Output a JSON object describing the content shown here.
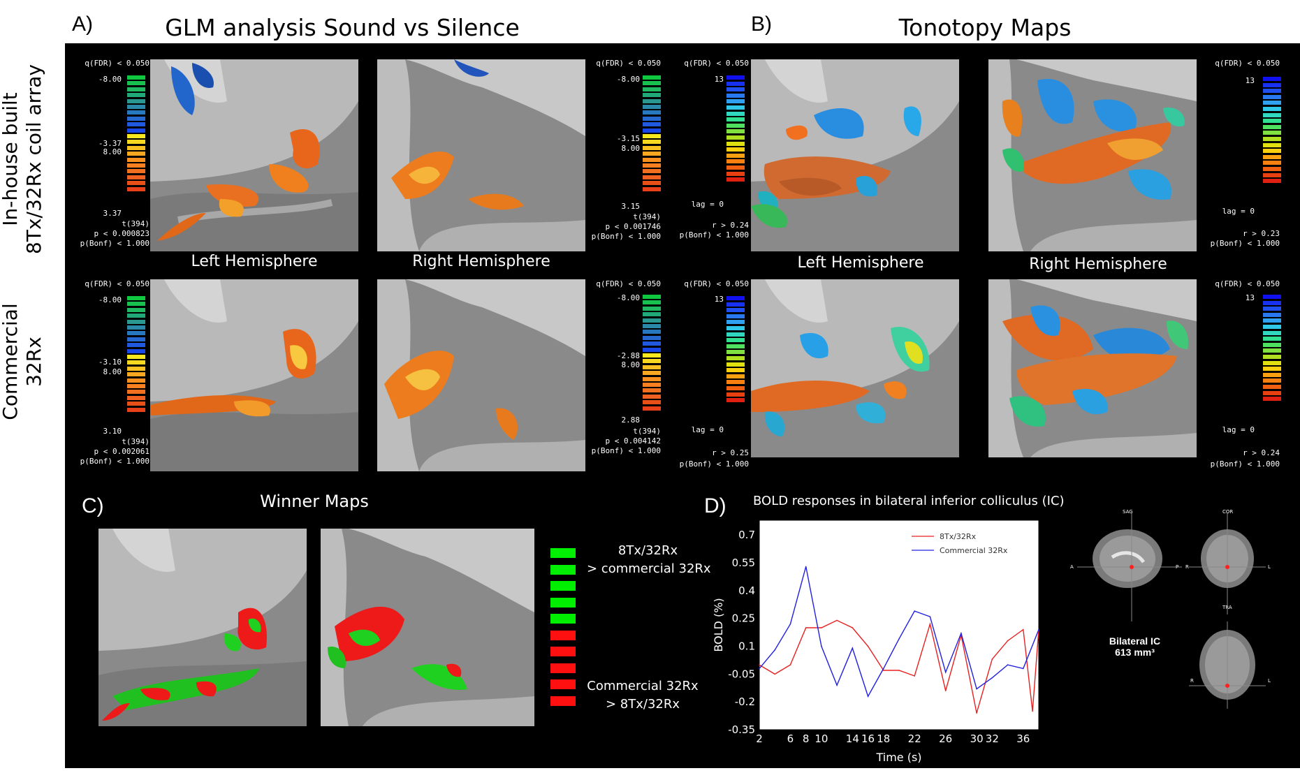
{
  "panels": {
    "a": {
      "letter": "A)",
      "title": "GLM analysis Sound vs Silence"
    },
    "b": {
      "letter": "B)",
      "title": "Tonotopy Maps"
    },
    "c": {
      "letter": "C)",
      "title": "Winner Maps"
    },
    "d": {
      "letter": "D)",
      "title": "BOLD responses in bilateral inferior colliculus (IC)"
    }
  },
  "rows": {
    "row1": {
      "line1": "In-house built",
      "line2": "8Tx/32Rx coil array"
    },
    "row2": {
      "line1": "Commercial",
      "line2": "32Rx"
    }
  },
  "hemispheres": {
    "left": "Left Hemisphere",
    "right": "Right Hemisphere"
  },
  "colorbars": {
    "glm_r1_left": {
      "q": "q(FDR) < 0.050",
      "top": "-8.00",
      "mid1": "-3.37",
      "mid2": "8.00",
      "bottom": "3.37",
      "stat": "t(394)",
      "p": "p < 0.000823",
      "bonf": "p(Bonf) < 1.000"
    },
    "glm_r1_right": {
      "q": "q(FDR) < 0.050",
      "top": "-8.00",
      "mid1": "-3.15",
      "mid2": "8.00",
      "bottom": "3.15",
      "stat": "t(394)",
      "p": "p < 0.001746",
      "bonf": "p(Bonf) < 1.000"
    },
    "glm_r2_left": {
      "q": "q(FDR) < 0.050",
      "top": "-8.00",
      "mid1": "-3.10",
      "mid2": "8.00",
      "bottom": "3.10",
      "stat": "t(394)",
      "p": "p < 0.002061",
      "bonf": "p(Bonf) < 1.000"
    },
    "glm_r2_right": {
      "q": "q(FDR) < 0.050",
      "top": "-8.00",
      "mid1": "-2.88",
      "mid2": "8.00",
      "bottom": "2.88",
      "stat": "t(394)",
      "p": "p < 0.004142",
      "bonf": "p(Bonf) < 1.000"
    },
    "tono_r1_left": {
      "q": "q(FDR) < 0.050",
      "top": "13",
      "bottom": "lag = 0",
      "r": "r > 0.24",
      "bonf": "p(Bonf) < 1.000"
    },
    "tono_r1_right": {
      "q": "q(FDR) < 0.050",
      "top": "13",
      "bottom": "lag = 0",
      "r": "r > 0.23",
      "bonf": "p(Bonf) < 1.000"
    },
    "tono_r2_left": {
      "q": "q(FDR) < 0.050",
      "top": "13",
      "bottom": "lag = 0",
      "r": "r > 0.25",
      "bonf": "p(Bonf) < 1.000"
    },
    "tono_r2_right": {
      "q": "q(FDR) < 0.050",
      "top": "13",
      "bottom": "lag = 0",
      "r": "r > 0.24",
      "bonf": "p(Bonf) < 1.000"
    }
  },
  "winner_legend": {
    "green_line1": "8Tx/32Rx",
    "green_line2": "> commercial 32Rx",
    "red_line1": "Commercial 32Rx",
    "red_line2": "> 8Tx/32Rx",
    "green_color": "#00ee00",
    "red_color": "#ff1010"
  },
  "mri": {
    "sag": "SAG",
    "cor": "COR",
    "tra": "TRA",
    "label_a": "A",
    "label_p": "P",
    "label_r": "R",
    "label_l": "L",
    "roi_line1": "Bilateral IC",
    "roi_line2": "613 mm³"
  },
  "chart_data": {
    "type": "line",
    "title": "BOLD responses in bilateral inferior colliculus (IC)",
    "xlabel": "Time (s)",
    "ylabel": "BOLD (%)",
    "xlim": [
      2,
      38
    ],
    "ylim": [
      -0.35,
      0.78
    ],
    "xticks": [
      2,
      6,
      8,
      10,
      14,
      16,
      18,
      22,
      26,
      30,
      32,
      36
    ],
    "xtick_labels": [
      "2",
      "6",
      "8",
      "10",
      "14",
      "16",
      "18",
      "22",
      "26",
      "30",
      "32",
      "36"
    ],
    "yticks": [
      0.7,
      0.55,
      0.4,
      0.25,
      0.1,
      -0.05,
      -0.2,
      -0.35
    ],
    "ytick_labels": [
      "0.7",
      "0.55",
      "0.4",
      "0.25",
      "0.1",
      "-0.05",
      "-0.2",
      "-0.35"
    ],
    "legend_position": "top-right",
    "series": [
      {
        "name": "8Tx/32Rx",
        "color": "#e82020",
        "x": [
          2,
          4,
          6,
          8,
          10,
          12,
          14,
          16,
          18,
          20,
          22,
          24,
          26,
          28,
          30,
          32,
          34,
          36,
          37.2,
          38
        ],
        "y": [
          0.0,
          -0.05,
          0.0,
          0.2,
          0.2,
          0.24,
          0.2,
          0.1,
          -0.03,
          -0.03,
          -0.06,
          0.22,
          -0.14,
          0.16,
          -0.26,
          0.03,
          0.13,
          0.19,
          -0.25,
          0.19
        ]
      },
      {
        "name": "Commercial 32Rx",
        "color": "#2020e0",
        "x": [
          2,
          4,
          6,
          8,
          10,
          12,
          14,
          16,
          18,
          20,
          22,
          24,
          26,
          28,
          30,
          32,
          34,
          36,
          38
        ],
        "y": [
          -0.02,
          0.08,
          0.22,
          0.53,
          0.1,
          -0.11,
          0.09,
          -0.17,
          -0.02,
          0.14,
          0.29,
          0.26,
          -0.04,
          0.17,
          -0.13,
          -0.07,
          0.0,
          -0.02,
          0.19
        ]
      }
    ]
  }
}
